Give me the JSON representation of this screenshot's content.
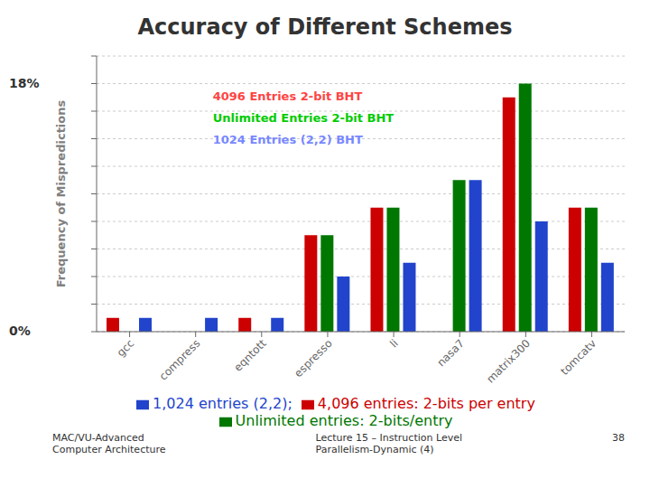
{
  "chart_data": {
    "type": "bar",
    "title": "Accuracy of Different Schemes",
    "ylabel": "Frequency of Mispredictions",
    "categories": [
      "gcc",
      "compress",
      "eqntott",
      "espresso",
      "li",
      "nasa7",
      "matrix300",
      "tomcatv"
    ],
    "series": [
      {
        "name": "4,096 entries: 2-bits per entry",
        "color": "#cc0000",
        "values": [
          1,
          0,
          1,
          7,
          9,
          0,
          17,
          9
        ]
      },
      {
        "name": "Unlimited entries: 2-bits/entry",
        "color": "#007700",
        "values": [
          0,
          0,
          0,
          7,
          9,
          11,
          18,
          9
        ]
      },
      {
        "name": "1,024 entries (2,2);",
        "color": "#2244cc",
        "values": [
          1,
          1,
          1,
          4,
          5,
          11,
          8,
          5
        ]
      }
    ],
    "ylim": [
      0,
      20
    ],
    "yticks": [
      0,
      2,
      4,
      6,
      8,
      10,
      12,
      14,
      16,
      18,
      20
    ],
    "grid": true,
    "tick_labels": "x",
    "legend": "bottom",
    "axis_annotations": [
      "18%",
      "0%"
    ],
    "notes": [
      {
        "text": "4096 Entries 2-bit BHT",
        "color": "#ff4444"
      },
      {
        "text": "Unlimited Entries 2-bit BHT",
        "color": "#00cc00"
      },
      {
        "text": "1024 Entries (2,2) BHT",
        "color": "#7788ff"
      }
    ],
    "footer": [
      "MAC/VU-Advanced\nComputer Architecture",
      "Lecture 15 – Instruction Level\nParallelism-Dynamic (4)",
      "38"
    ]
  }
}
